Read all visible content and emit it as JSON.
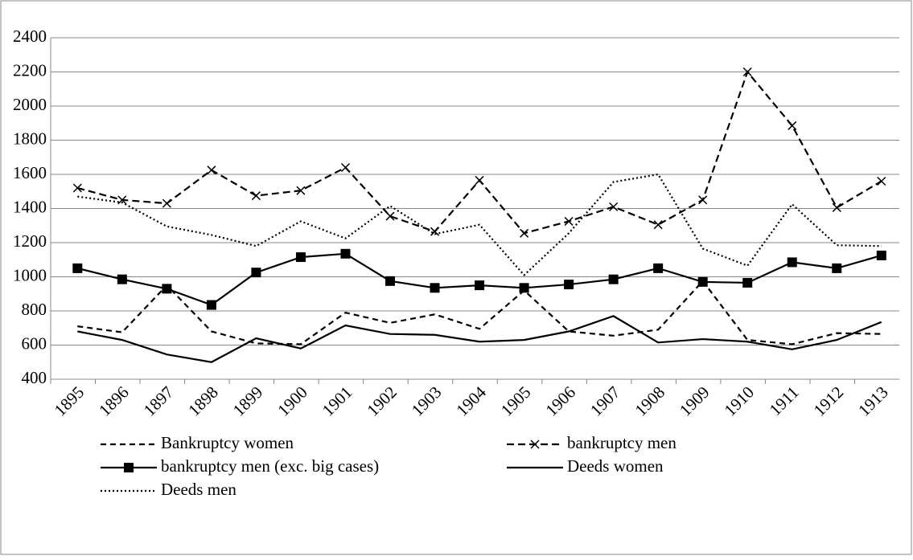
{
  "chart_data": {
    "type": "line",
    "categories": [
      "1895",
      "1896",
      "1897",
      "1898",
      "1899",
      "1900",
      "1901",
      "1902",
      "1903",
      "1904",
      "1905",
      "1906",
      "1907",
      "1908",
      "1909",
      "1910",
      "1911",
      "1912",
      "1913"
    ],
    "series": [
      {
        "name": "Bankruptcy women",
        "color": "#000000",
        "dash": "7,5",
        "marker": "none",
        "values": [
          710,
          675,
          950,
          680,
          610,
          605,
          790,
          730,
          780,
          695,
          920,
          680,
          655,
          690,
          975,
          630,
          605,
          670,
          665
        ]
      },
      {
        "name": "bankruptcy men",
        "color": "#000000",
        "dash": "9,5",
        "marker": "x",
        "values": [
          1520,
          1450,
          1430,
          1625,
          1475,
          1505,
          1640,
          1355,
          1265,
          1565,
          1255,
          1325,
          1410,
          1305,
          1450,
          2200,
          1885,
          1405,
          1560
        ]
      },
      {
        "name": "bankruptcy men (exc. big cases)",
        "color": "#000000",
        "dash": "none",
        "marker": "square",
        "values": [
          1050,
          985,
          930,
          835,
          1025,
          1115,
          1135,
          975,
          935,
          950,
          935,
          955,
          985,
          1050,
          970,
          965,
          1085,
          1050,
          1125
        ]
      },
      {
        "name": "Deeds women",
        "color": "#000000",
        "dash": "none",
        "marker": "none",
        "values": [
          680,
          630,
          545,
          500,
          640,
          580,
          715,
          665,
          660,
          620,
          630,
          680,
          770,
          615,
          635,
          620,
          575,
          630,
          735
        ]
      },
      {
        "name": "Deeds men",
        "color": "#000000",
        "dash": "2,3",
        "marker": "none",
        "values": [
          1470,
          1435,
          1295,
          1245,
          1180,
          1325,
          1225,
          1415,
          1250,
          1305,
          1010,
          1255,
          1555,
          1600,
          1165,
          1065,
          1425,
          1185,
          1180
        ]
      }
    ],
    "ylim": [
      400,
      2400
    ],
    "yticks": [
      400,
      600,
      800,
      1000,
      1200,
      1400,
      1600,
      1800,
      2000,
      2200,
      2400
    ],
    "grid": true
  }
}
